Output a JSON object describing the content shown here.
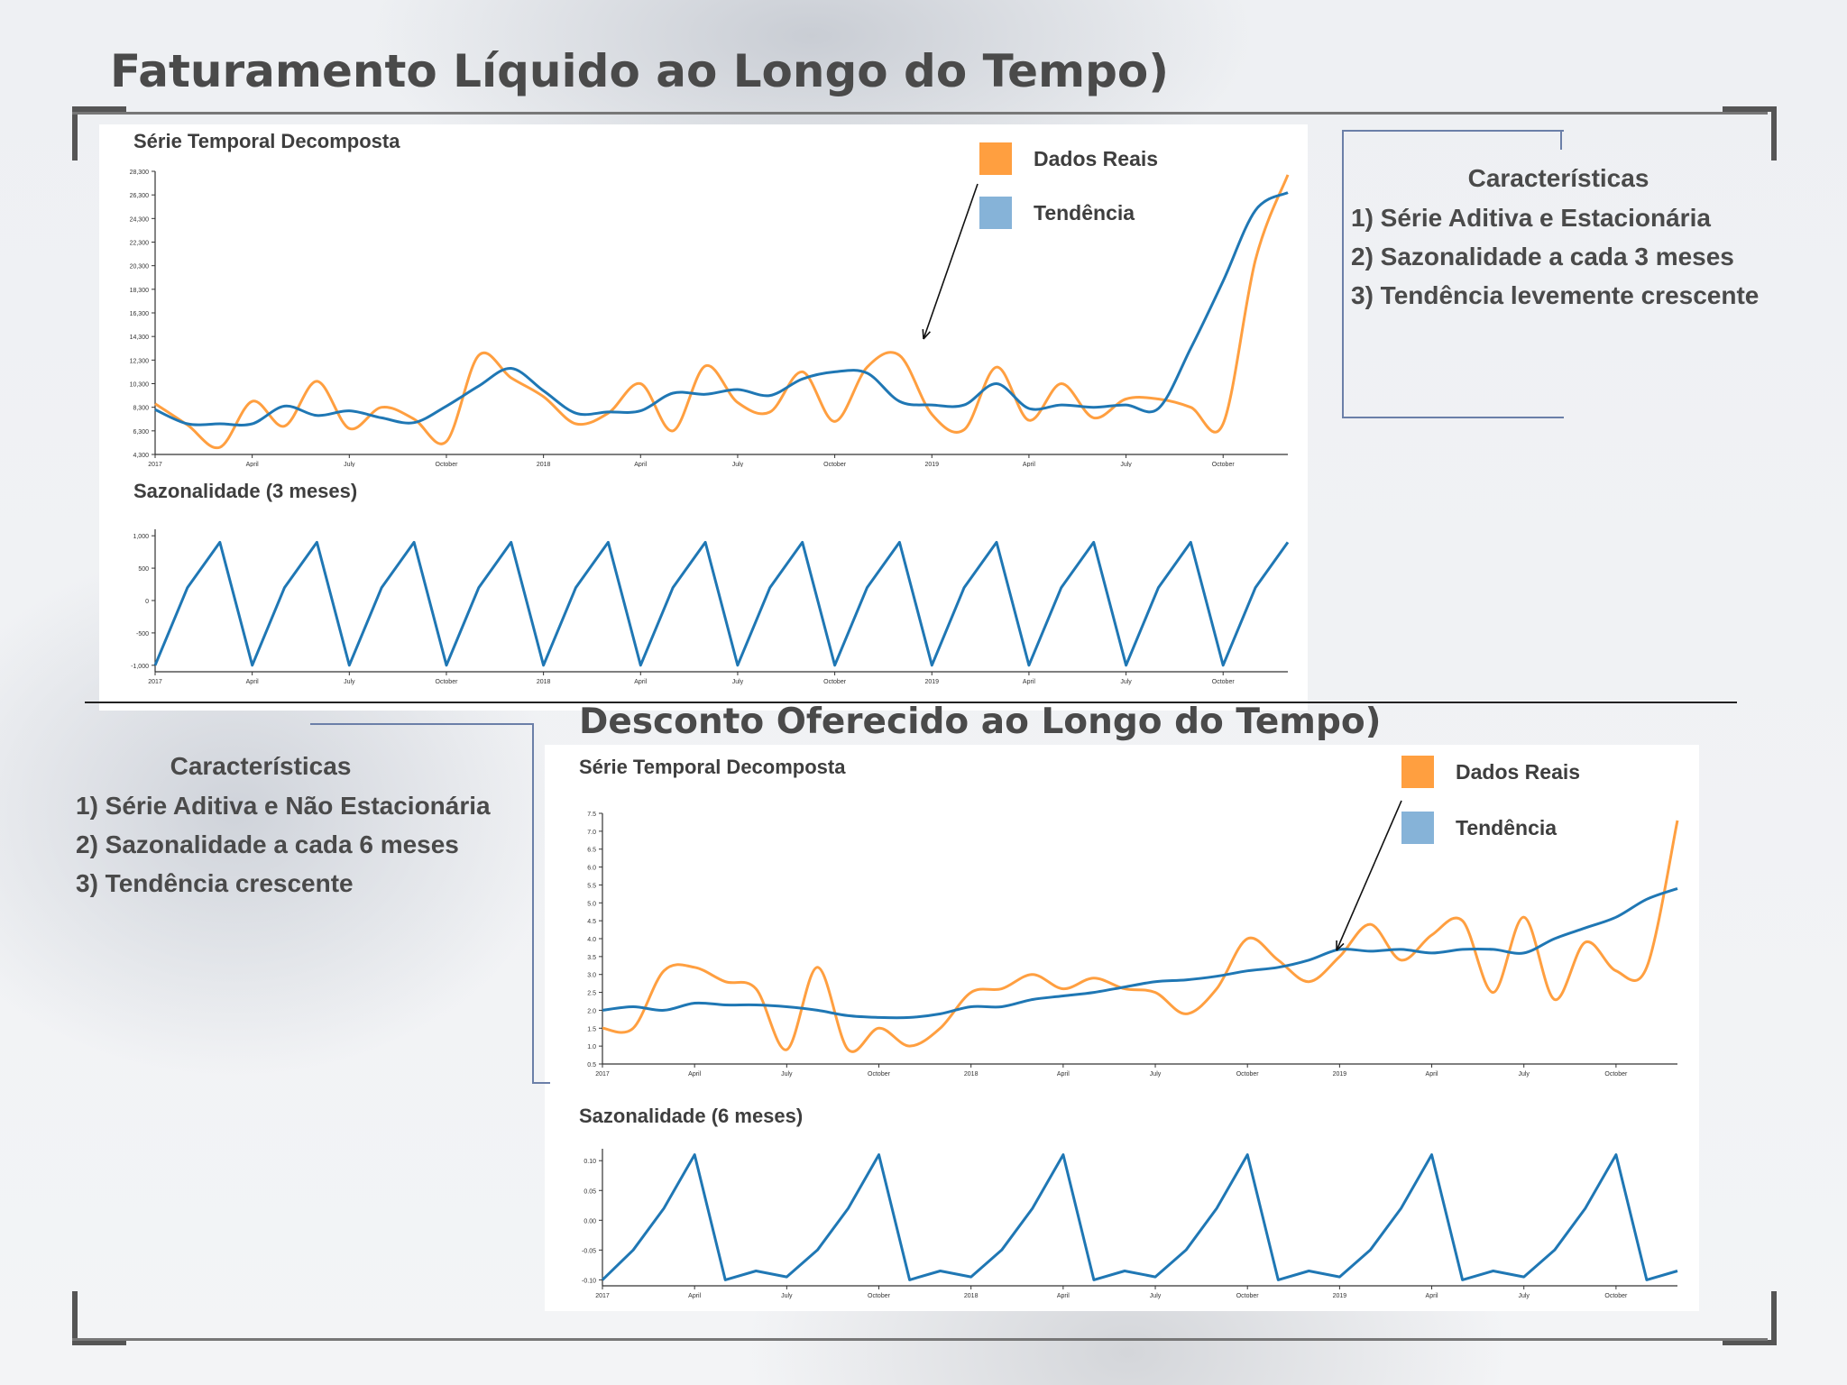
{
  "colors": {
    "real": "#ff9f40",
    "trend": "#1f77b4",
    "legend_trend": "#86b3d8"
  },
  "section1": {
    "title": "Faturamento Líquido ao Longo do Tempo)",
    "features_heading": "Características",
    "features": [
      "1) Série Aditiva e Estacionária",
      "2) Sazonalidade a cada 3 meses",
      "3) Tendência levemente crescente"
    ]
  },
  "section2": {
    "title": "Desconto Oferecido ao Longo do Tempo)",
    "features_heading": "Características",
    "features": [
      "1) Série Aditiva e Não Estacionária",
      "2) Sazonalidade a cada 6 meses",
      "3) Tendência crescente"
    ]
  },
  "chart_data": [
    {
      "type": "line",
      "title": "Série Temporal Decomposta",
      "legend": [
        "Dados Reais",
        "Tendência"
      ],
      "x": [
        "2017-01",
        "2017-02",
        "2017-03",
        "2017-04",
        "2017-05",
        "2017-06",
        "2017-07",
        "2017-08",
        "2017-09",
        "2017-10",
        "2017-11",
        "2017-12",
        "2018-01",
        "2018-02",
        "2018-03",
        "2018-04",
        "2018-05",
        "2018-06",
        "2018-07",
        "2018-08",
        "2018-09",
        "2018-10",
        "2018-11",
        "2018-12",
        "2019-01",
        "2019-02",
        "2019-03",
        "2019-04",
        "2019-05",
        "2019-06",
        "2019-07",
        "2019-08",
        "2019-09",
        "2019-10",
        "2019-11",
        "2019-12"
      ],
      "x_ticks": [
        "2017",
        "April",
        "July",
        "October",
        "2018",
        "April",
        "July",
        "October",
        "2019",
        "April",
        "July",
        "October"
      ],
      "y_ticks": [
        "4,300",
        "6,300",
        "8,300",
        "10,300",
        "12,300",
        "14,300",
        "16,300",
        "18,300",
        "20,300",
        "22,300",
        "24,300",
        "26,300",
        "28,300"
      ],
      "ylim": [
        4300,
        28300
      ],
      "series": [
        {
          "name": "Dados Reais",
          "values": [
            8600,
            6800,
            4900,
            8800,
            6700,
            10500,
            6500,
            8300,
            7300,
            5400,
            12700,
            10800,
            9200,
            6900,
            7800,
            10300,
            6300,
            11800,
            8700,
            7900,
            11300,
            7100,
            11700,
            12700,
            7700,
            6400,
            11700,
            7200,
            10300,
            7400,
            9000,
            9000,
            8300,
            6900,
            20800,
            28000
          ]
        },
        {
          "name": "Tendência",
          "values": [
            8100,
            6900,
            6900,
            6900,
            8400,
            7600,
            8000,
            7400,
            7000,
            8400,
            10100,
            11600,
            9700,
            7800,
            7900,
            8000,
            9500,
            9400,
            9800,
            9300,
            10700,
            11300,
            11200,
            8800,
            8500,
            8500,
            10300,
            8200,
            8500,
            8300,
            8500,
            8200,
            13300,
            19000,
            25000,
            26500
          ]
        }
      ]
    },
    {
      "type": "line",
      "title": "Sazonalidade (3 meses)",
      "x_ticks": [
        "2017",
        "April",
        "July",
        "October",
        "2018",
        "April",
        "July",
        "October",
        "2019",
        "April",
        "July",
        "October"
      ],
      "y_ticks": [
        "1,000",
        "500",
        "0",
        "-500",
        "-1,000"
      ],
      "ylim": [
        -1100,
        1100
      ],
      "series": [
        {
          "name": "",
          "values": [
            -1000,
            200,
            900,
            -1000,
            200,
            900,
            -1000,
            200,
            900,
            -1000,
            200,
            900,
            -1000,
            200,
            900,
            -1000,
            200,
            900,
            -1000,
            200,
            900,
            -1000,
            200,
            900,
            -1000,
            200,
            900,
            -1000,
            200,
            900,
            -1000,
            200,
            900,
            -1000,
            200,
            900
          ]
        }
      ]
    },
    {
      "type": "line",
      "title": "Série Temporal Decomposta",
      "legend": [
        "Dados Reais",
        "Tendência"
      ],
      "x": [
        "2017-01",
        "2017-02",
        "2017-03",
        "2017-04",
        "2017-05",
        "2017-06",
        "2017-07",
        "2017-08",
        "2017-09",
        "2017-10",
        "2017-11",
        "2017-12",
        "2018-01",
        "2018-02",
        "2018-03",
        "2018-04",
        "2018-05",
        "2018-06",
        "2018-07",
        "2018-08",
        "2018-09",
        "2018-10",
        "2018-11",
        "2018-12",
        "2019-01",
        "2019-02",
        "2019-03",
        "2019-04",
        "2019-05",
        "2019-06",
        "2019-07",
        "2019-08",
        "2019-09",
        "2019-10",
        "2019-11",
        "2019-12"
      ],
      "x_ticks": [
        "2017",
        "April",
        "July",
        "October",
        "2018",
        "April",
        "July",
        "October",
        "2019",
        "April",
        "July",
        "October"
      ],
      "y_ticks": [
        "0.5",
        "1.0",
        "1.5",
        "2.0",
        "2.5",
        "3.0",
        "3.5",
        "4.0",
        "4.5",
        "5.0",
        "5.5",
        "6.0",
        "6.5",
        "7.0",
        "7.5"
      ],
      "ylim": [
        0.5,
        7.5
      ],
      "series": [
        {
          "name": "Dados Reais",
          "values": [
            1.5,
            1.5,
            3.1,
            3.2,
            2.8,
            2.6,
            0.9,
            3.2,
            0.9,
            1.5,
            1.0,
            1.5,
            2.5,
            2.6,
            3.0,
            2.6,
            2.9,
            2.6,
            2.5,
            1.9,
            2.6,
            4.0,
            3.4,
            2.8,
            3.5,
            4.4,
            3.4,
            4.1,
            4.5,
            2.5,
            4.6,
            2.3,
            3.9,
            3.1,
            3.2,
            7.3
          ]
        },
        {
          "name": "Tendência",
          "values": [
            2.0,
            2.1,
            2.0,
            2.2,
            2.15,
            2.15,
            2.1,
            2.0,
            1.85,
            1.8,
            1.8,
            1.9,
            2.1,
            2.1,
            2.3,
            2.4,
            2.5,
            2.65,
            2.8,
            2.85,
            2.95,
            3.1,
            3.2,
            3.4,
            3.7,
            3.65,
            3.7,
            3.6,
            3.7,
            3.7,
            3.6,
            4.0,
            4.3,
            4.6,
            5.1,
            5.4
          ]
        }
      ]
    },
    {
      "type": "line",
      "title": "Sazonalidade (6 meses)",
      "x_ticks": [
        "2017",
        "April",
        "July",
        "October",
        "2018",
        "April",
        "July",
        "October",
        "2019",
        "April",
        "July",
        "October"
      ],
      "y_ticks": [
        "0.10",
        "0.05",
        "0.00",
        "-0.05",
        "-0.10"
      ],
      "ylim": [
        -0.11,
        0.12
      ],
      "series": [
        {
          "name": "",
          "values": [
            -0.1,
            -0.05,
            0.02,
            0.11,
            -0.1,
            -0.085,
            -0.095,
            -0.05,
            0.02,
            0.11,
            -0.1,
            -0.085,
            -0.095,
            -0.05,
            0.02,
            0.11,
            -0.1,
            -0.085,
            -0.095,
            -0.05,
            0.02,
            0.11,
            -0.1,
            -0.085,
            -0.095,
            -0.05,
            0.02,
            0.11,
            -0.1,
            -0.085,
            -0.095,
            -0.05,
            0.02,
            0.11,
            -0.1,
            -0.085
          ]
        }
      ]
    }
  ]
}
